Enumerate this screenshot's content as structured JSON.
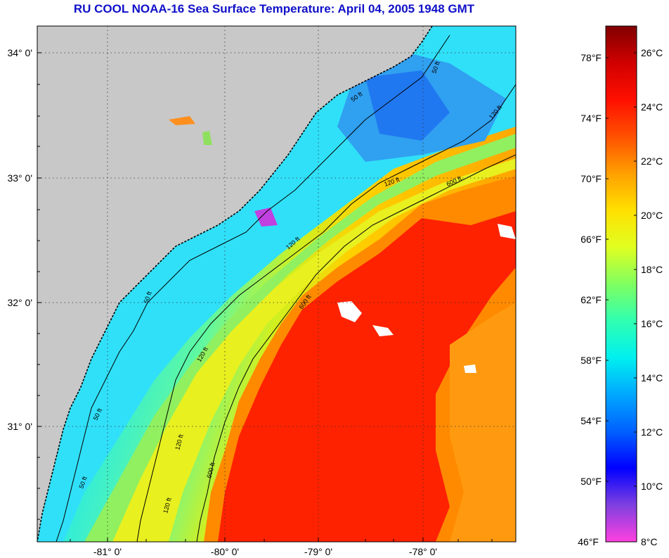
{
  "title": "RU COOL  NOAA-16  Sea Surface Temperature:  April 04, 2005 1948 GMT",
  "colors": {
    "land": "#c8c8c8",
    "title": "#1010c8",
    "colorbar_stops": [
      "#ff40e0",
      "#8040e0",
      "#0000ff",
      "#0060ff",
      "#00a8ff",
      "#00f0f0",
      "#30ffb0",
      "#80ff60",
      "#e0ff20",
      "#ffe000",
      "#ffa000",
      "#ff5000",
      "#ff1000",
      "#d00000",
      "#800000"
    ]
  },
  "map": {
    "lon_labels": [
      "-81° 0'",
      "-80° 0'",
      "-79° 0'",
      "-78° 0'"
    ],
    "lat_labels": [
      "34° 0'",
      "33° 0'",
      "32° 0'",
      "31° 0'"
    ],
    "contours": [
      {
        "label": "50 ft"
      },
      {
        "label": "50 ft"
      },
      {
        "label": "50 ft"
      },
      {
        "label": "50 ft"
      },
      {
        "label": "50 ft"
      },
      {
        "label": "120 ft"
      },
      {
        "label": "120 ft"
      },
      {
        "label": "120 ft"
      },
      {
        "label": "120 ft"
      },
      {
        "label": "120 ft"
      },
      {
        "label": "120 ft"
      },
      {
        "label": "600 ft"
      },
      {
        "label": "600 ft"
      },
      {
        "label": "600 ft"
      }
    ]
  },
  "colorbar": {
    "f_labels": [
      "78°F",
      "74°F",
      "70°F",
      "66°F",
      "62°F",
      "58°F",
      "54°F",
      "50°F",
      "46°F"
    ],
    "c_labels": [
      "26°C",
      "24°C",
      "22°C",
      "20°C",
      "18°C",
      "16°C",
      "14°C",
      "12°C",
      "10°C",
      "8°C"
    ]
  }
}
